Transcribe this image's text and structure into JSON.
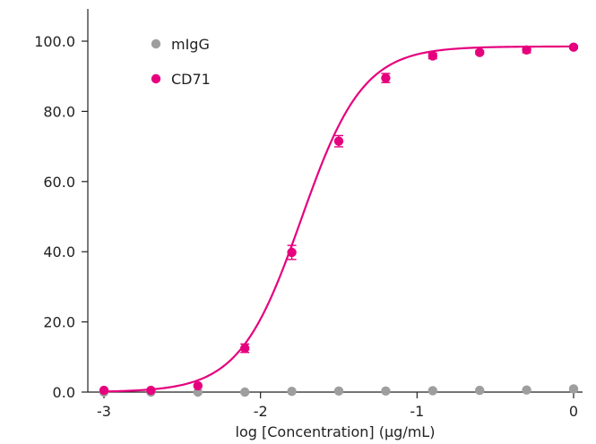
{
  "chart_data": {
    "type": "scatter",
    "xlabel": "log [Concentration] (µg/mL)",
    "ylabel": "",
    "xlim": [
      -3.12,
      0.07
    ],
    "ylim": [
      0,
      105
    ],
    "x_ticks": [
      -3,
      -2,
      -1,
      0
    ],
    "x_tick_labels": [
      "-3",
      "-2",
      "-1",
      "0"
    ],
    "y_ticks": [
      0,
      20,
      40,
      60,
      80,
      100
    ],
    "y_tick_labels": [
      "0.0",
      "20.0",
      "40.0",
      "60.0",
      "80.0",
      "100.0"
    ],
    "grid": false,
    "legend_position": "top-left",
    "series": [
      {
        "name": "mIgG",
        "color": "#9e9e9e",
        "marker": "circle",
        "x": [
          -3.0,
          -2.7,
          -2.4,
          -2.1,
          -1.8,
          -1.5,
          -1.2,
          -0.9,
          -0.6,
          -0.3,
          0.0
        ],
        "y": [
          0.0,
          0.0,
          0.0,
          0.0,
          0.2,
          0.3,
          0.3,
          0.4,
          0.5,
          0.6,
          0.9
        ],
        "error": [
          0,
          0,
          0,
          0,
          0,
          0,
          0,
          0,
          0,
          0,
          0
        ],
        "fit_curve": false
      },
      {
        "name": "CD71",
        "color": "#e6007e",
        "marker": "circle",
        "x": [
          -3.0,
          -2.7,
          -2.4,
          -2.1,
          -1.8,
          -1.5,
          -1.2,
          -0.9,
          -0.6,
          -0.3,
          0.0
        ],
        "y": [
          0.5,
          0.5,
          1.8,
          12.5,
          39.8,
          71.5,
          89.5,
          95.8,
          96.8,
          97.5,
          98.3
        ],
        "error": [
          0,
          0,
          0,
          1.2,
          2.0,
          1.6,
          1.3,
          0.8,
          0.5,
          0.8,
          0.4
        ],
        "fit_curve": true,
        "fit": {
          "bottom": 0.0,
          "top": 98.5,
          "log_ec50": -1.74,
          "hill_slope": 2.2
        }
      }
    ]
  }
}
